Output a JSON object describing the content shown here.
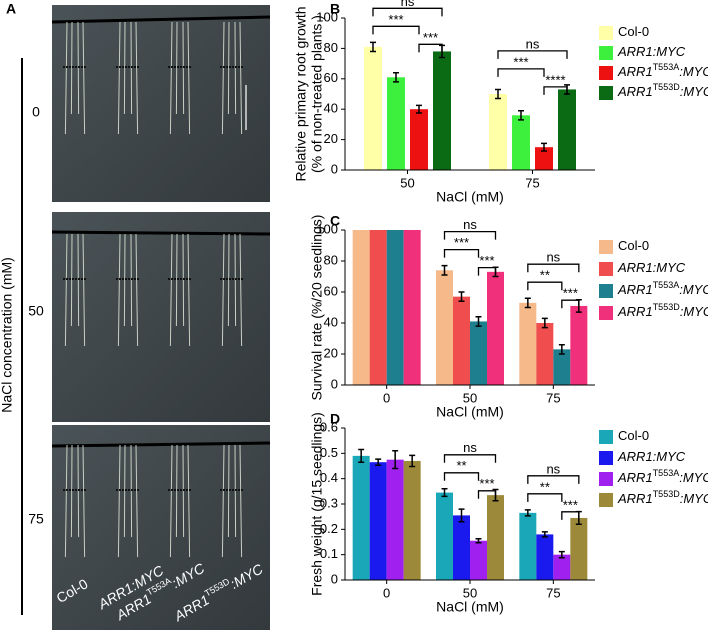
{
  "panel_a": {
    "label": "A",
    "ylabel": "NaCl concentration (mM)",
    "rows": [
      "0",
      "50",
      "75"
    ],
    "genotypes": [
      {
        "name": "Col-0"
      },
      {
        "name": "ARR1:MYC"
      },
      {
        "name": "ARR1T553A:MYC",
        "sup": "T553A"
      },
      {
        "name": "ARR1T553D:MYC",
        "sup": "T553D"
      }
    ]
  },
  "chart_data": [
    {
      "type": "bar",
      "label": "B",
      "ylabel": [
        "Relative primary root growth",
        "(% of non-treated plants )"
      ],
      "xlabel": "NaCl (mM)",
      "categories": [
        "50",
        "75"
      ],
      "ylim": [
        0,
        100
      ],
      "yticks": [
        0,
        20,
        40,
        60,
        80,
        100
      ],
      "series": [
        {
          "name": "Col-0",
          "color": "#ffffa8",
          "values": [
            81,
            50
          ],
          "errors": [
            3,
            3
          ]
        },
        {
          "name": "ARR1:MYC",
          "color": "#3ef03e",
          "values": [
            61,
            36
          ],
          "errors": [
            3,
            3
          ]
        },
        {
          "name": "ARR1T553A:MYC",
          "sup": "T553A",
          "color": "#ee1111",
          "values": [
            40,
            15
          ],
          "errors": [
            2.5,
            2.5
          ]
        },
        {
          "name": "ARR1T553D:MYC",
          "sup": "T553D",
          "color": "#0b6b14",
          "values": [
            78,
            53
          ],
          "errors": [
            4,
            3
          ]
        }
      ],
      "annotations": [
        [
          "ns",
          "***",
          "***"
        ],
        [
          "ns",
          "***",
          "****"
        ]
      ]
    },
    {
      "type": "bar",
      "label": "C",
      "ylabel": [
        "Survival rate (%/20 seedlings)"
      ],
      "xlabel": "NaCl (mM)",
      "categories": [
        "0",
        "50",
        "75"
      ],
      "ylim": [
        0,
        100
      ],
      "yticks": [
        0,
        20,
        40,
        60,
        80,
        100
      ],
      "series": [
        {
          "name": "Col-0",
          "color": "#f5b98a",
          "values": [
            100,
            74,
            53
          ],
          "errors": [
            0,
            3,
            3
          ]
        },
        {
          "name": "ARR1:MYC",
          "color": "#f04e4e",
          "values": [
            100,
            57,
            40
          ],
          "errors": [
            0,
            3,
            3
          ]
        },
        {
          "name": "ARR1T553A:MYC",
          "sup": "T553A",
          "color": "#1e7f8e",
          "values": [
            100,
            41,
            23
          ],
          "errors": [
            0,
            3,
            3
          ]
        },
        {
          "name": "ARR1T553D:MYC",
          "sup": "T553D",
          "color": "#f0307a",
          "values": [
            100,
            73,
            51
          ],
          "errors": [
            0,
            3,
            4
          ]
        }
      ],
      "annotations": [
        null,
        [
          "ns",
          "***",
          "***"
        ],
        [
          "ns",
          "**",
          "***"
        ]
      ]
    },
    {
      "type": "bar",
      "label": "D",
      "ylabel": [
        "Fresh weight (g/15 seedlings)"
      ],
      "xlabel": "NaCl (mM)",
      "categories": [
        "0",
        "50",
        "75"
      ],
      "ylim": [
        0,
        0.6
      ],
      "yticks": [
        0,
        0.1,
        0.2,
        0.3,
        0.4,
        0.5,
        0.6
      ],
      "series": [
        {
          "name": "Col-0",
          "color": "#1aa7b8",
          "values": [
            0.49,
            0.345,
            0.265
          ],
          "errors": [
            0.025,
            0.015,
            0.012
          ]
        },
        {
          "name": "ARR1:MYC",
          "color": "#1a1aee",
          "values": [
            0.465,
            0.255,
            0.18
          ],
          "errors": [
            0.012,
            0.025,
            0.01
          ]
        },
        {
          "name": "ARR1T553A:MYC",
          "sup": "T553A",
          "color": "#a020f0",
          "values": [
            0.475,
            0.155,
            0.1
          ],
          "errors": [
            0.035,
            0.008,
            0.012
          ]
        },
        {
          "name": "ARR1T553D:MYC",
          "sup": "T553D",
          "color": "#9c8a3a",
          "values": [
            0.47,
            0.335,
            0.245
          ],
          "errors": [
            0.022,
            0.022,
            0.025
          ]
        }
      ],
      "annotations": [
        null,
        [
          "ns",
          "**",
          "***"
        ],
        [
          "ns",
          "**",
          "***"
        ]
      ]
    }
  ]
}
